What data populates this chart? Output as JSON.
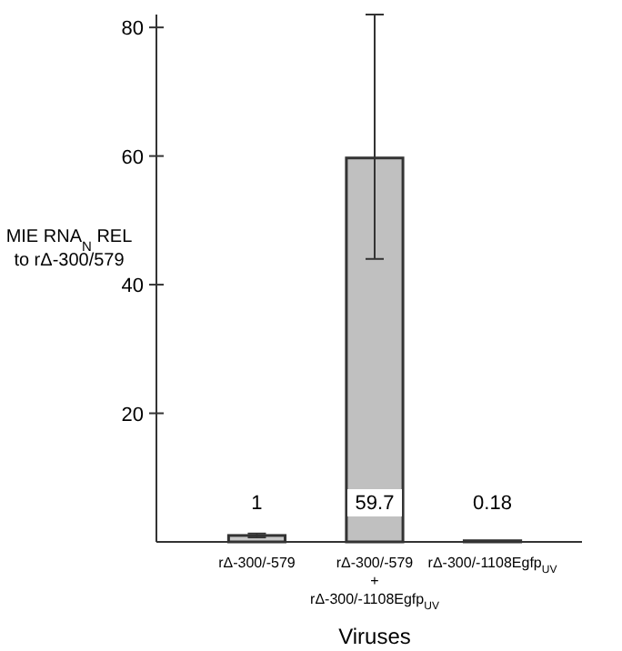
{
  "chart_data": {
    "type": "bar",
    "xlabel": "Viruses",
    "ylabel": "MIE RNA$_{N}$ REL\nto rΔ-300/579",
    "categories": [
      "rΔ-300/-579",
      "rΔ-300/-579\n+\nrΔ-300/-1108Egfp$_{UV}$",
      "rΔ-300/-1108Egfp$_{UV}$"
    ],
    "values": [
      1,
      59.7,
      0.18
    ],
    "colors": [
      "#c8c8c8",
      "#c0c0c0",
      "#c0c0c0"
    ],
    "errors": [
      0.3,
      [
        44,
        82
      ],
      null
    ],
    "data_labels": true,
    "ylim": [
      0,
      82
    ],
    "yticks": [
      20,
      40,
      60,
      80
    ]
  }
}
